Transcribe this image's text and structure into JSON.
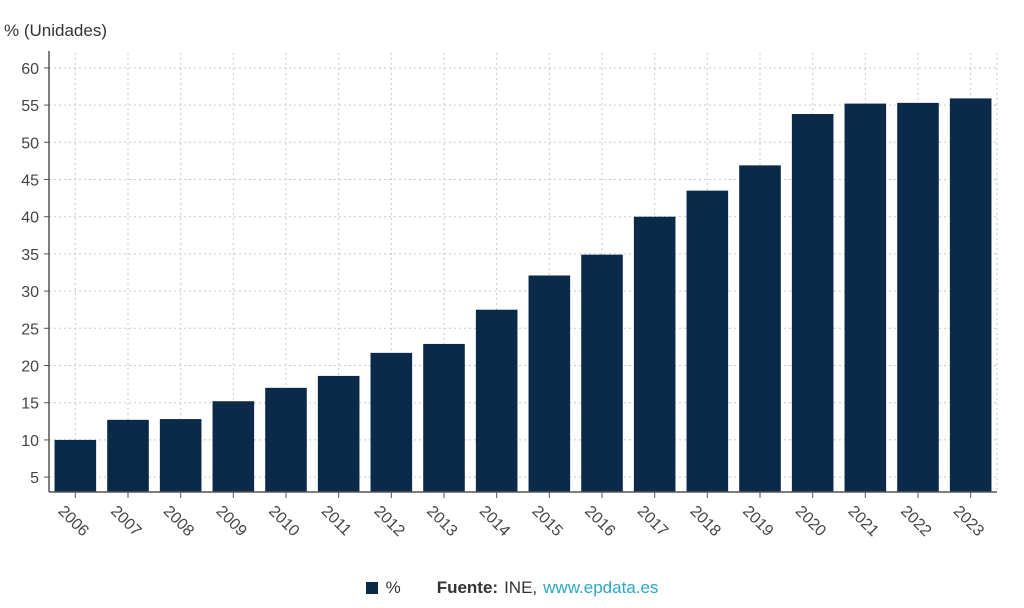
{
  "chart_data": {
    "type": "bar",
    "ylabel": "% (Unidades)",
    "categories": [
      "2006",
      "2007",
      "2008",
      "2009",
      "2010",
      "2011",
      "2012",
      "2013",
      "2014",
      "2015",
      "2016",
      "2017",
      "2018",
      "2019",
      "2020",
      "2021",
      "2022",
      "2023"
    ],
    "series": [
      {
        "name": "%",
        "values": [
          10.0,
          12.7,
          12.8,
          15.2,
          17.0,
          18.6,
          21.7,
          22.9,
          27.5,
          32.1,
          34.9,
          40.0,
          43.5,
          46.9,
          53.8,
          55.2,
          55.3,
          55.9
        ]
      }
    ],
    "ylim": [
      3,
      62
    ],
    "yticks": [
      5,
      10,
      15,
      20,
      25,
      30,
      35,
      40,
      45,
      50,
      55,
      60
    ],
    "grid": true,
    "bar_color": "#0b2a4a",
    "grid_color": "#c8c8c8",
    "legend_position": "bottom"
  },
  "footer": {
    "source_label": "Fuente:",
    "source_name": "INE,",
    "source_link": "www.epdata.es",
    "link_color": "#2aa7c9"
  }
}
